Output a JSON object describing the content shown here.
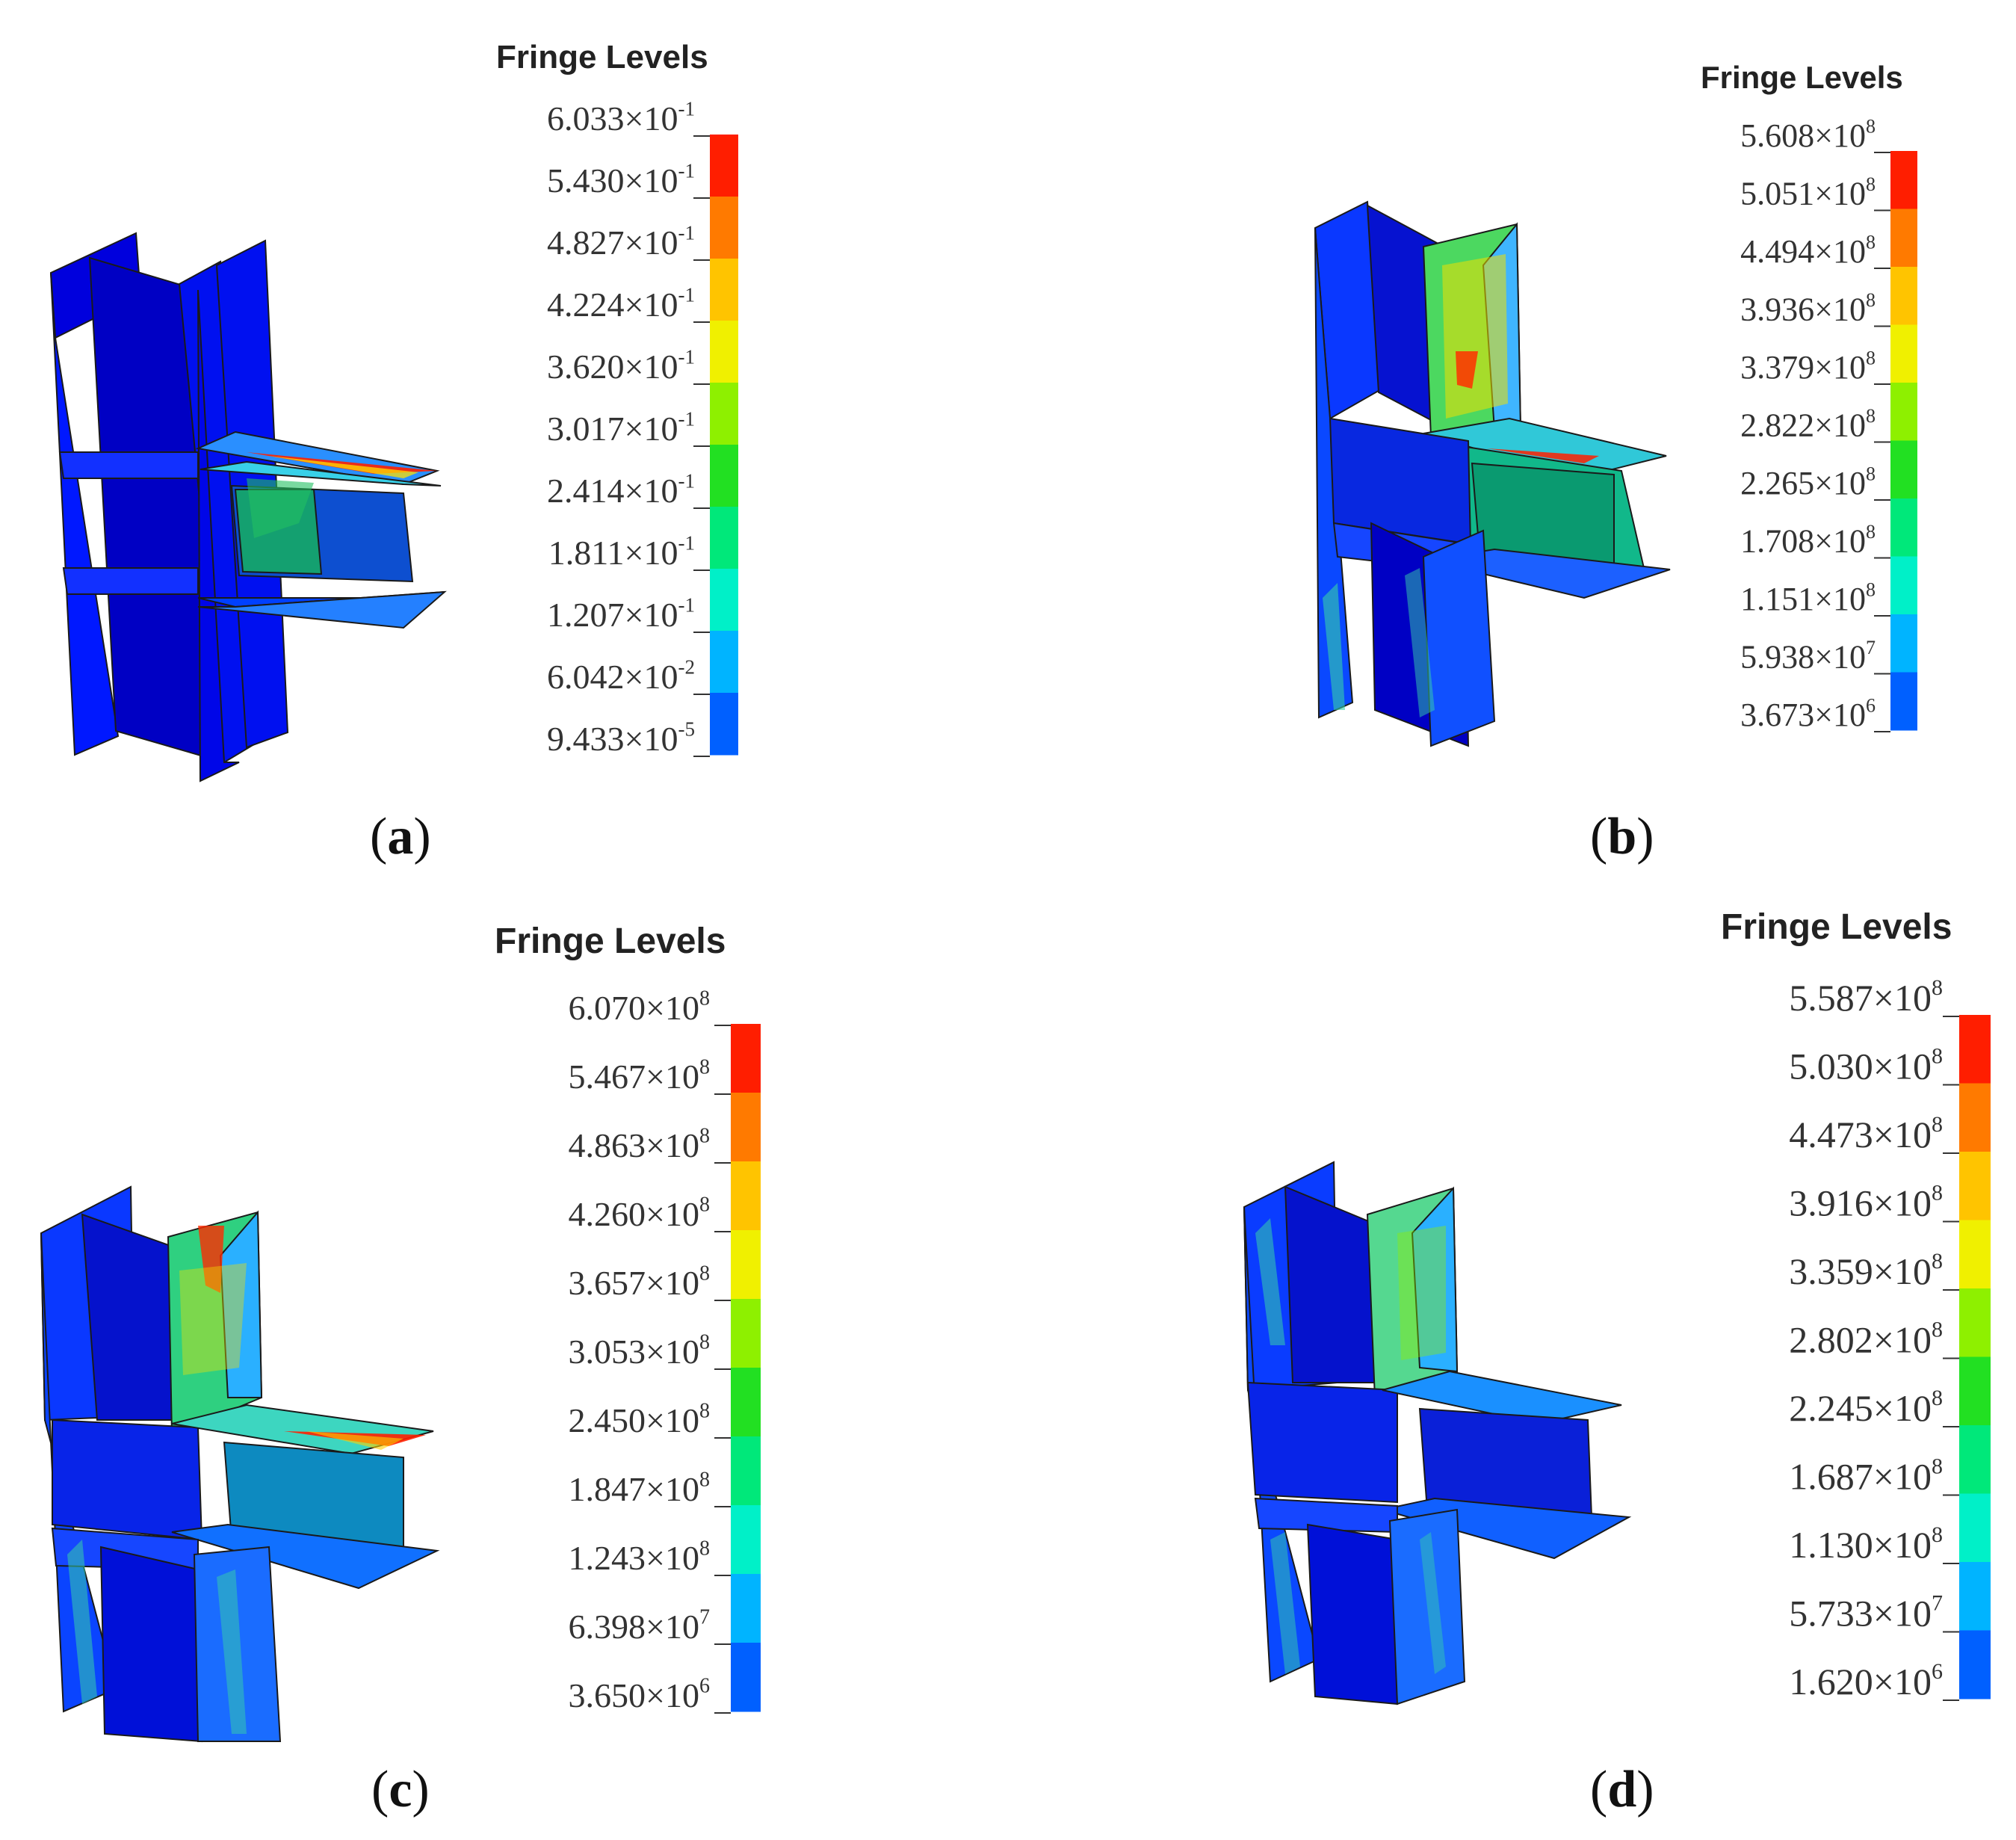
{
  "colors": {
    "fringe": [
      "#0000ff",
      "#0060ff",
      "#00b4ff",
      "#00f0c8",
      "#00e87a",
      "#22e022",
      "#8ef000",
      "#f0f000",
      "#ffc400",
      "#ff7a00",
      "#ff1e00"
    ],
    "deep_blue": "#0000cc",
    "edge": "#1a1a1a"
  },
  "panels": [
    {
      "id": "a",
      "legend_title": "Fringe Levels",
      "levels": [
        {
          "m": "6.033",
          "e": "-1"
        },
        {
          "m": "5.430",
          "e": "-1"
        },
        {
          "m": "4.827",
          "e": "-1"
        },
        {
          "m": "4.224",
          "e": "-1"
        },
        {
          "m": "3.620",
          "e": "-1"
        },
        {
          "m": "3.017",
          "e": "-1"
        },
        {
          "m": "2.414",
          "e": "-1"
        },
        {
          "m": "1.811",
          "e": "-1"
        },
        {
          "m": "1.207",
          "e": "-1"
        },
        {
          "m": "6.042",
          "e": "-2"
        },
        {
          "m": "9.433",
          "e": "-5"
        }
      ],
      "caption": "a"
    },
    {
      "id": "b",
      "legend_title": "Fringe Levels",
      "levels": [
        {
          "m": "5.608",
          "e": "8"
        },
        {
          "m": "5.051",
          "e": "8"
        },
        {
          "m": "4.494",
          "e": "8"
        },
        {
          "m": "3.936",
          "e": "8"
        },
        {
          "m": "3.379",
          "e": "8"
        },
        {
          "m": "2.822",
          "e": "8"
        },
        {
          "m": "2.265",
          "e": "8"
        },
        {
          "m": "1.708",
          "e": "8"
        },
        {
          "m": "1.151",
          "e": "8"
        },
        {
          "m": "5.938",
          "e": "7"
        },
        {
          "m": "3.673",
          "e": "6"
        }
      ],
      "caption": "b"
    },
    {
      "id": "c",
      "legend_title": "Fringe Levels",
      "levels": [
        {
          "m": "6.070",
          "e": "8"
        },
        {
          "m": "5.467",
          "e": "8"
        },
        {
          "m": "4.863",
          "e": "8"
        },
        {
          "m": "4.260",
          "e": "8"
        },
        {
          "m": "3.657",
          "e": "8"
        },
        {
          "m": "3.053",
          "e": "8"
        },
        {
          "m": "2.450",
          "e": "8"
        },
        {
          "m": "1.847",
          "e": "8"
        },
        {
          "m": "1.243",
          "e": "8"
        },
        {
          "m": "6.398",
          "e": "7"
        },
        {
          "m": "3.650",
          "e": "6"
        }
      ],
      "caption": "c"
    },
    {
      "id": "d",
      "legend_title": "Fringe Levels",
      "levels": [
        {
          "m": "5.587",
          "e": "8"
        },
        {
          "m": "5.030",
          "e": "8"
        },
        {
          "m": "4.473",
          "e": "8"
        },
        {
          "m": "3.916",
          "e": "8"
        },
        {
          "m": "3.359",
          "e": "8"
        },
        {
          "m": "2.802",
          "e": "8"
        },
        {
          "m": "2.245",
          "e": "8"
        },
        {
          "m": "1.687",
          "e": "8"
        },
        {
          "m": "1.130",
          "e": "8"
        },
        {
          "m": "5.733",
          "e": "7"
        },
        {
          "m": "1.620",
          "e": "6"
        }
      ],
      "caption": "d"
    }
  ]
}
